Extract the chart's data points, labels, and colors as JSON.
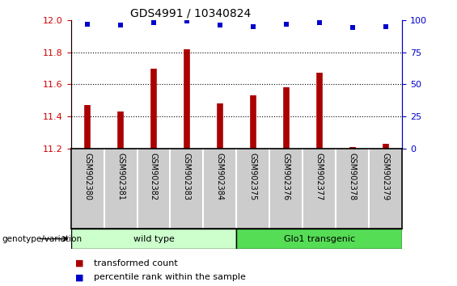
{
  "title": "GDS4991 / 10340824",
  "samples": [
    "GSM902380",
    "GSM902381",
    "GSM902382",
    "GSM902383",
    "GSM902384",
    "GSM902375",
    "GSM902376",
    "GSM902377",
    "GSM902378",
    "GSM902379"
  ],
  "bar_values": [
    11.47,
    11.43,
    11.7,
    11.82,
    11.48,
    11.53,
    11.58,
    11.67,
    11.21,
    11.23
  ],
  "dot_values": [
    97,
    96,
    98,
    99,
    96,
    95,
    97,
    98,
    94,
    95
  ],
  "ylim_left": [
    11.2,
    12.0
  ],
  "ylim_right": [
    0,
    100
  ],
  "yticks_left": [
    11.2,
    11.4,
    11.6,
    11.8,
    12.0
  ],
  "yticks_right": [
    0,
    25,
    50,
    75,
    100
  ],
  "bar_color": "#aa0000",
  "dot_color": "#0000cc",
  "group1_label": "wild type",
  "group2_label": "Glo1 transgenic",
  "group1_count": 5,
  "group2_count": 5,
  "group1_color": "#ccffcc",
  "group2_color": "#55dd55",
  "genotype_label": "genotype/variation",
  "legend_bar_label": "transformed count",
  "legend_dot_label": "percentile rank within the sample",
  "bg_color": "#ffffff",
  "tick_label_color_left": "#cc0000",
  "tick_label_color_right": "#0000cc",
  "sample_bg_color": "#cccccc",
  "grid_linestyle": ":",
  "grid_linewidth": 0.8
}
